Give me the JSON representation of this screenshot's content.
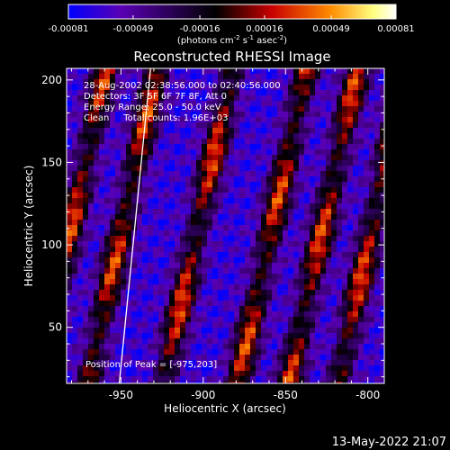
{
  "chart_data": {
    "type": "heatmap",
    "title": "Reconstructed RHESSI Image",
    "xlabel": "Heliocentric X (arcsec)",
    "ylabel": "Heliocentric Y (arcsec)",
    "xlim": [
      -983,
      -790
    ],
    "ylim": [
      16,
      207
    ],
    "x_ticks": [
      -950,
      -900,
      -850,
      -800
    ],
    "x_tick_labels": [
      "-950",
      "-900",
      "-850",
      "-800"
    ],
    "y_ticks": [
      50,
      100,
      150,
      200
    ],
    "y_tick_labels": [
      "50",
      "100",
      "150",
      "200"
    ],
    "colorbar": {
      "range": [
        -0.00081,
        0.00081
      ],
      "ticks": [
        -0.00081,
        -0.00049,
        -0.00016,
        0.00016,
        0.00049,
        0.00081
      ],
      "tick_labels": [
        "-0.00081",
        "-0.00049",
        "-0.00016",
        "0.00016",
        "0.00049",
        "0.00081"
      ],
      "unit_label": "(photons cm",
      "unit_exp1": "-2",
      "unit_mid": " s",
      "unit_exp2": "-1",
      "unit_mid2": " asec",
      "unit_exp3": "-2",
      "unit_end": ")",
      "colors": [
        "#0000ff",
        "#5a00b4",
        "#000000",
        "#c80000",
        "#ff8c00",
        "#ffff80",
        "#ffffff"
      ]
    },
    "annotations": [
      "28-Aug-2002 02:38:56.000 to 02:40:56.000",
      "Detectors: 3F 5F 6F 7F 8F, Att 0",
      "Energy Range: 25.0 - 50.0 keV",
      "Clean     Total counts: 1.96E+03"
    ],
    "peak_label": "Position of Peak = [-975,203]",
    "stripe_centers_at_y_mid": [
      -980,
      -949,
      -903,
      -858,
      -827,
      -797
    ],
    "stripe_tilt_arcsec_per_arcsec": 0.22,
    "limb_line": [
      [
        -951,
        16
      ],
      [
        -932,
        207
      ]
    ]
  },
  "footer": {
    "timestamp": "13-May-2022 21:07"
  }
}
